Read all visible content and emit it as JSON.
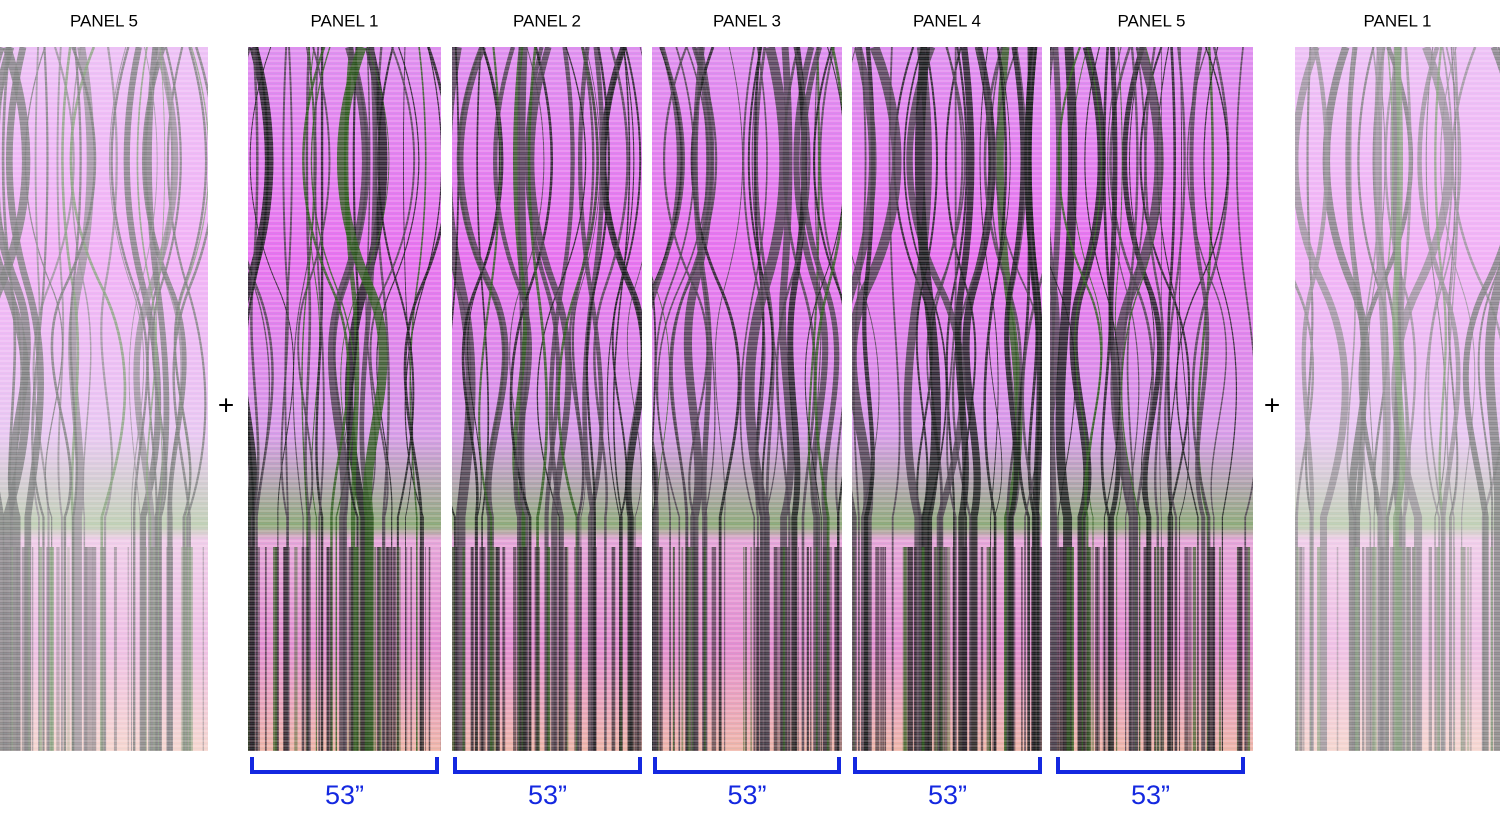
{
  "panels": [
    {
      "label": "PANEL 5"
    },
    {
      "label": "PANEL 1"
    },
    {
      "label": "PANEL 2"
    },
    {
      "label": "PANEL 3"
    },
    {
      "label": "PANEL 4"
    },
    {
      "label": "PANEL 5"
    },
    {
      "label": "PANEL 1"
    }
  ],
  "joins": [
    "+",
    "+"
  ],
  "widths": [
    "53”",
    "53”",
    "53”",
    "53”",
    "53”"
  ]
}
